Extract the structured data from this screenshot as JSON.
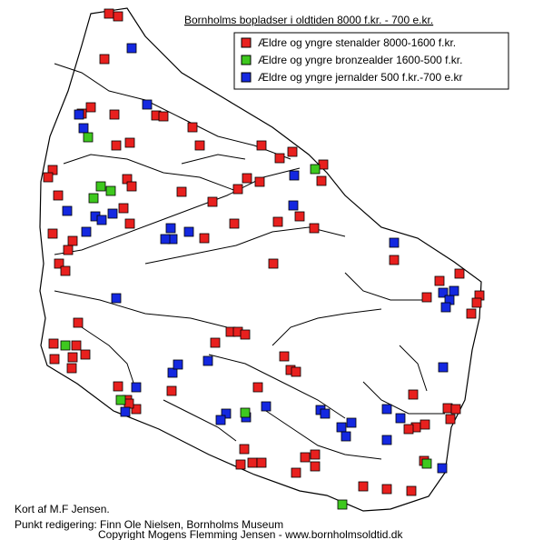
{
  "map": {
    "title": "Bornholms bopladser i oldtiden 8000 f.kr. - 700 e.kr.",
    "legend": [
      {
        "label": "Ældre og yngre stenalder 8000-1600 f.kr.",
        "color": "#e8201e"
      },
      {
        "label": "Ældre og yngre bronzealder 1600-500 f.kr.",
        "color": "#3ec81e"
      },
      {
        "label": "Ældre og yngre jernalder 500 f.kr.-700 e.kr",
        "color": "#1428e0"
      }
    ],
    "credits": [
      "Kort af M.F Jensen.",
      "Punkt redigering: Finn Ole Nielsen, Bornholms Museum",
      "Copyright Mogens Flemming Jensen - www.bornholmsoldtid.dk"
    ]
  }
}
